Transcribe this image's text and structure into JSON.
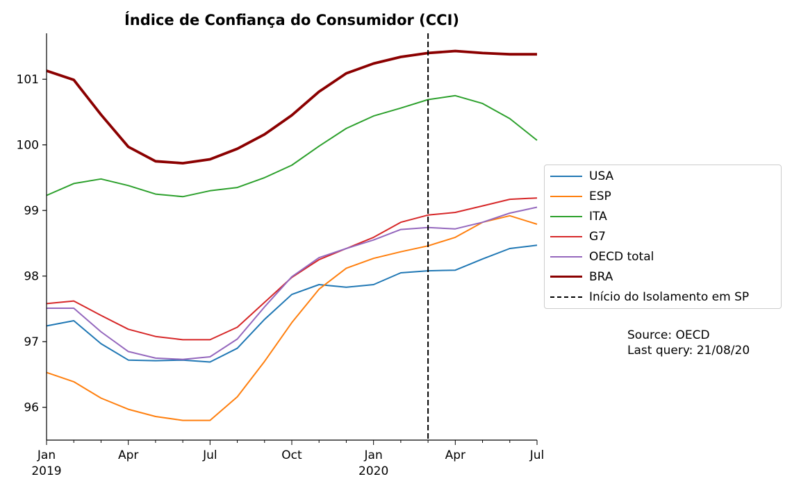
{
  "chart_data": {
    "type": "line",
    "title": "Índice de Confiança do Consumidor (CCI)",
    "xlabel": "",
    "ylabel": "",
    "x": [
      "2019-01",
      "2019-02",
      "2019-03",
      "2019-04",
      "2019-05",
      "2019-06",
      "2019-07",
      "2019-08",
      "2019-09",
      "2019-10",
      "2019-11",
      "2019-12",
      "2020-01",
      "2020-02",
      "2020-03",
      "2020-04",
      "2020-05",
      "2020-06",
      "2020-07"
    ],
    "xlim": [
      "2019-01",
      "2020-07"
    ],
    "ylim": [
      95.5,
      101.7
    ],
    "yticks": [
      96,
      97,
      98,
      99,
      100,
      101
    ],
    "xticks": [
      {
        "x": "2019-01",
        "label": "Jan",
        "label2": "2019"
      },
      {
        "x": "2019-04",
        "label": "Apr",
        "label2": ""
      },
      {
        "x": "2019-07",
        "label": "Jul",
        "label2": ""
      },
      {
        "x": "2019-10",
        "label": "Oct",
        "label2": ""
      },
      {
        "x": "2020-01",
        "label": "Jan",
        "label2": "2020"
      },
      {
        "x": "2020-04",
        "label": "Apr",
        "label2": ""
      },
      {
        "x": "2020-07",
        "label": "Jul",
        "label2": ""
      }
    ],
    "series": [
      {
        "name": "USA",
        "color": "#1f77b4",
        "width": 2,
        "values": [
          97.24,
          97.32,
          96.97,
          96.72,
          96.71,
          96.72,
          96.69,
          96.9,
          97.34,
          97.72,
          97.87,
          97.83,
          97.87,
          98.05,
          98.08,
          98.09,
          98.26,
          98.42,
          98.47
        ]
      },
      {
        "name": "ESP",
        "color": "#ff7f0e",
        "width": 2,
        "values": [
          96.53,
          96.39,
          96.14,
          95.97,
          95.86,
          95.8,
          95.8,
          96.16,
          96.7,
          97.29,
          97.8,
          98.12,
          98.27,
          98.37,
          98.46,
          98.59,
          98.82,
          98.92,
          98.79
        ]
      },
      {
        "name": "ITA",
        "color": "#2ca02c",
        "width": 2,
        "values": [
          99.23,
          99.41,
          99.48,
          99.38,
          99.25,
          99.21,
          99.3,
          99.35,
          99.5,
          99.69,
          99.98,
          100.25,
          100.44,
          100.56,
          100.69,
          100.75,
          100.63,
          100.4,
          100.07
        ]
      },
      {
        "name": "G7",
        "color": "#d62728",
        "width": 2,
        "values": [
          97.58,
          97.62,
          97.4,
          97.19,
          97.08,
          97.03,
          97.03,
          97.22,
          97.6,
          97.98,
          98.25,
          98.42,
          98.59,
          98.82,
          98.93,
          98.97,
          99.07,
          99.17,
          99.19
        ]
      },
      {
        "name": "OECD total",
        "color": "#9467bd",
        "width": 2,
        "values": [
          97.51,
          97.51,
          97.15,
          96.85,
          96.75,
          96.73,
          96.77,
          97.04,
          97.53,
          97.99,
          98.28,
          98.42,
          98.55,
          98.71,
          98.74,
          98.72,
          98.82,
          98.96,
          99.05
        ]
      },
      {
        "name": "BRA",
        "color": "#8b0000",
        "width": 3.8,
        "values": [
          101.13,
          100.99,
          100.46,
          99.97,
          99.75,
          99.72,
          99.78,
          99.94,
          100.16,
          100.45,
          100.81,
          101.09,
          101.24,
          101.34,
          101.4,
          101.43,
          101.4,
          101.38,
          101.38
        ]
      }
    ],
    "vline": {
      "x": "2020-03",
      "label": "Início do Isolamento em SP",
      "color": "#000000",
      "dash": "dashed"
    },
    "legend_position": "center-right",
    "grid": false
  },
  "annotation": {
    "line1": "Source: OECD",
    "line2": "Last query: 21/08/20"
  }
}
